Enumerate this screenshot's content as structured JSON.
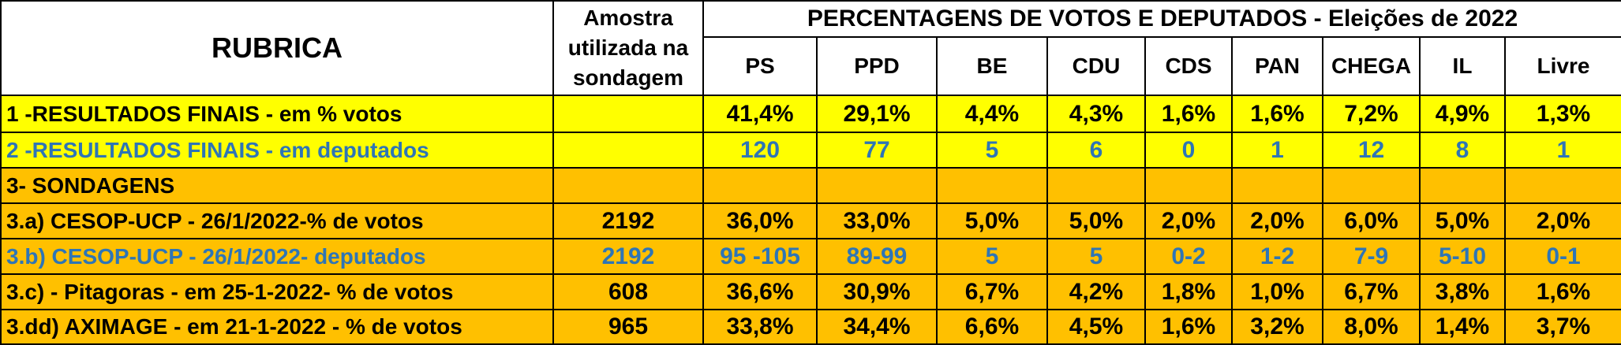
{
  "header": {
    "rubrica": "RUBRICA",
    "amostra": "Amostra utilizada na sondagem",
    "title": "PERCENTAGENS DE VOTOS E DEPUTADOS - Eleições de 2022",
    "parties": [
      "PS",
      "PPD",
      "BE",
      "CDU",
      "CDS",
      "PAN",
      "CHEGA",
      "IL",
      "Livre"
    ]
  },
  "rows": [
    {
      "label": "1 -RESULTADOS FINAIS - em % votos",
      "amostra": "",
      "values": [
        "41,4%",
        "29,1%",
        "4,4%",
        "4,3%",
        "1,6%",
        "1,6%",
        "7,2%",
        "4,9%",
        "1,3%"
      ]
    },
    {
      "label": "2 -RESULTADOS FINAIS - em deputados",
      "amostra": "",
      "values": [
        "120",
        "77",
        "5",
        "6",
        "0",
        "1",
        "12",
        "8",
        "1"
      ]
    },
    {
      "label": "3- SONDAGENS",
      "amostra": "",
      "values": [
        "",
        "",
        "",
        "",
        "",
        "",
        "",
        "",
        ""
      ]
    },
    {
      "label": "3.a) CESOP-UCP - 26/1/2022-% de votos",
      "amostra": "2192",
      "values": [
        "36,0%",
        "33,0%",
        "5,0%",
        "5,0%",
        "2,0%",
        "2,0%",
        "6,0%",
        "5,0%",
        "2,0%"
      ]
    },
    {
      "label": "3.b) CESOP-UCP - 26/1/2022- deputados",
      "amostra": "2192",
      "values": [
        "95 -105",
        "89-99",
        "5",
        "5",
        "0-2",
        "1-2",
        "7-9",
        "5-10",
        "0-1"
      ]
    },
    {
      "label": "3.c) - Pitagoras - em 25-1-2022- % de votos",
      "amostra": "608",
      "values": [
        "36,6%",
        "30,9%",
        "6,7%",
        "4,2%",
        "1,8%",
        "1,0%",
        "6,7%",
        "3,8%",
        "1,6%"
      ]
    },
    {
      "label": "3.dd) AXIMAGE - em 21-1-2022 - % de votos",
      "amostra": "965",
      "values": [
        "33,8%",
        "34,4%",
        "6,6%",
        "4,5%",
        "1,6%",
        "3,2%",
        "8,0%",
        "1,4%",
        "3,7%"
      ]
    }
  ],
  "colors": {
    "yellow": "#ffff00",
    "orange": "#ffc000",
    "blue_text": "#2e75b6",
    "black_text": "#000000"
  }
}
